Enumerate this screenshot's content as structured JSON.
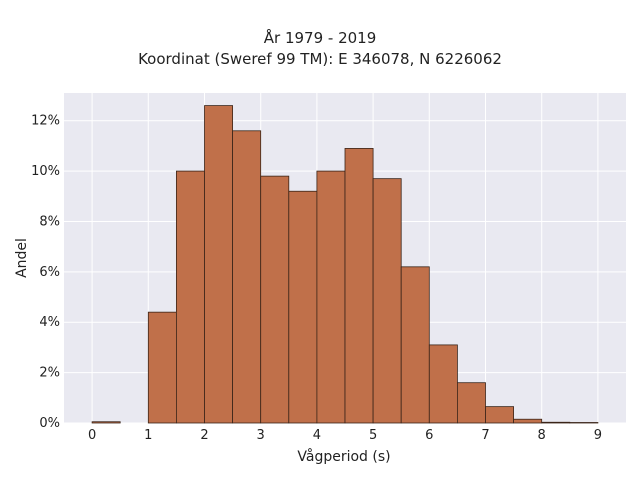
{
  "chart_data": {
    "type": "histogram",
    "title_lines": [
      "År 1979 - 2019",
      "Koordinat (Sweref 99 TM): E 346078, N 6226062"
    ],
    "xlabel": "Vågperiod (s)",
    "ylabel": "Andel",
    "xlim": [
      -0.5,
      9.5
    ],
    "ylim": [
      0,
      13.1
    ],
    "x_ticks": [
      0,
      1,
      2,
      3,
      4,
      5,
      6,
      7,
      8,
      9
    ],
    "y_ticks": [
      0,
      2,
      4,
      6,
      8,
      10,
      12
    ],
    "y_tick_suffix": "%",
    "grid": true,
    "bin_width": 0.5,
    "bar_color": "#c0704a",
    "bar_edge_color": "#3a2418",
    "plot_background": "#e9e9f1",
    "bins": [
      {
        "start": 0.0,
        "value": 0.05
      },
      {
        "start": 0.5,
        "value": 0.0
      },
      {
        "start": 1.0,
        "value": 4.4
      },
      {
        "start": 1.5,
        "value": 10.0
      },
      {
        "start": 2.0,
        "value": 12.6
      },
      {
        "start": 2.5,
        "value": 11.6
      },
      {
        "start": 3.0,
        "value": 9.8
      },
      {
        "start": 3.5,
        "value": 9.2
      },
      {
        "start": 4.0,
        "value": 10.0
      },
      {
        "start": 4.5,
        "value": 10.9
      },
      {
        "start": 5.0,
        "value": 9.7
      },
      {
        "start": 5.5,
        "value": 6.2
      },
      {
        "start": 6.0,
        "value": 3.1
      },
      {
        "start": 6.5,
        "value": 1.6
      },
      {
        "start": 7.0,
        "value": 0.65
      },
      {
        "start": 7.5,
        "value": 0.15
      },
      {
        "start": 8.0,
        "value": 0.03
      },
      {
        "start": 8.5,
        "value": 0.02
      }
    ]
  }
}
